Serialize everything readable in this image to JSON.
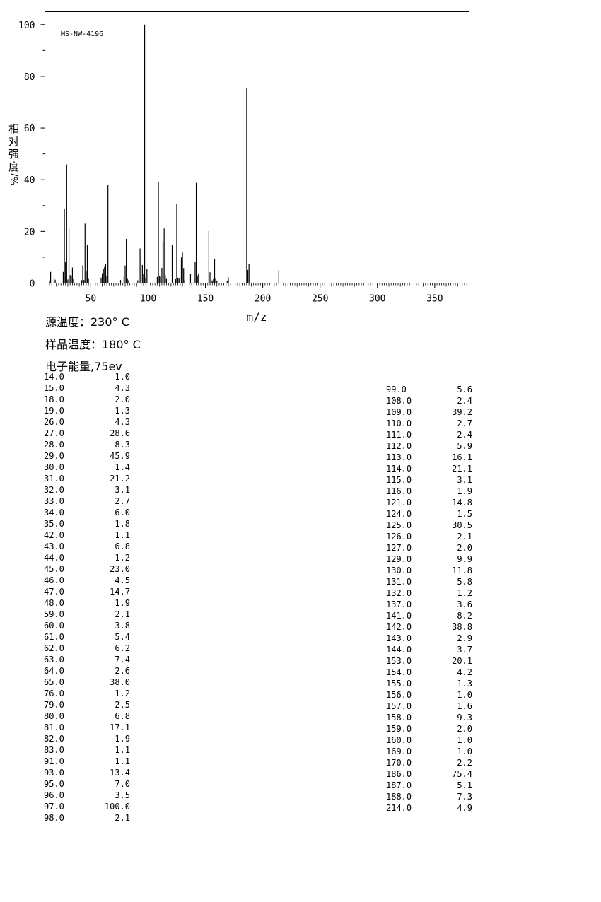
{
  "chart_data": {
    "type": "bar",
    "annotation": "MS-NW-4196",
    "ylabel_chars": [
      "相",
      "对",
      "强",
      "度"
    ],
    "ylabel_suffix": "%/",
    "xlabel": "m/z",
    "xlim": [
      10,
      380
    ],
    "ylim": [
      0,
      105
    ],
    "x_ticks": [
      50,
      100,
      150,
      200,
      250,
      300,
      350
    ],
    "y_ticks": [
      0,
      20,
      40,
      60,
      80,
      100
    ],
    "grid": false,
    "peaks": [
      [
        14,
        1.0
      ],
      [
        15,
        4.3
      ],
      [
        18,
        2.0
      ],
      [
        19,
        1.3
      ],
      [
        26,
        4.3
      ],
      [
        27,
        28.6
      ],
      [
        28,
        8.3
      ],
      [
        29,
        45.9
      ],
      [
        30,
        1.4
      ],
      [
        31,
        21.2
      ],
      [
        32,
        3.1
      ],
      [
        33,
        2.7
      ],
      [
        34,
        6.0
      ],
      [
        35,
        1.8
      ],
      [
        42,
        1.1
      ],
      [
        43,
        6.8
      ],
      [
        44,
        1.2
      ],
      [
        45,
        23.0
      ],
      [
        46,
        4.5
      ],
      [
        47,
        14.7
      ],
      [
        48,
        1.9
      ],
      [
        59,
        2.1
      ],
      [
        60,
        3.8
      ],
      [
        61,
        5.4
      ],
      [
        62,
        6.2
      ],
      [
        63,
        7.4
      ],
      [
        64,
        2.6
      ],
      [
        65,
        38.0
      ],
      [
        76,
        1.2
      ],
      [
        79,
        2.5
      ],
      [
        80,
        6.8
      ],
      [
        81,
        17.1
      ],
      [
        82,
        1.9
      ],
      [
        83,
        1.1
      ],
      [
        91,
        1.1
      ],
      [
        93,
        13.4
      ],
      [
        95,
        7.0
      ],
      [
        96,
        3.5
      ],
      [
        97,
        100.0
      ],
      [
        98,
        2.1
      ],
      [
        99,
        5.6
      ],
      [
        108,
        2.4
      ],
      [
        109,
        39.2
      ],
      [
        110,
        2.7
      ],
      [
        111,
        2.4
      ],
      [
        112,
        5.9
      ],
      [
        113,
        16.1
      ],
      [
        114,
        21.1
      ],
      [
        115,
        3.1
      ],
      [
        116,
        1.9
      ],
      [
        121,
        14.8
      ],
      [
        124,
        1.5
      ],
      [
        125,
        30.5
      ],
      [
        126,
        2.1
      ],
      [
        127,
        2.0
      ],
      [
        129,
        9.9
      ],
      [
        130,
        11.8
      ],
      [
        131,
        5.8
      ],
      [
        132,
        1.2
      ],
      [
        137,
        3.6
      ],
      [
        141,
        8.2
      ],
      [
        142,
        38.8
      ],
      [
        143,
        2.9
      ],
      [
        144,
        3.7
      ],
      [
        153,
        20.1
      ],
      [
        154,
        4.2
      ],
      [
        155,
        1.3
      ],
      [
        156,
        1.0
      ],
      [
        157,
        1.6
      ],
      [
        158,
        9.3
      ],
      [
        159,
        2.0
      ],
      [
        160,
        1.0
      ],
      [
        169,
        1.0
      ],
      [
        170,
        2.2
      ],
      [
        186,
        75.4
      ],
      [
        187,
        5.1
      ],
      [
        188,
        7.3
      ],
      [
        214,
        4.9
      ]
    ]
  },
  "info": {
    "source_temp": "源温度：230° C",
    "sample_temp": "样品温度：180° C",
    "electron_energy": "电子能量,75ev"
  },
  "peak_table_left": [
    [
      "14.0",
      "1.0"
    ],
    [
      "15.0",
      "4.3"
    ],
    [
      "18.0",
      "2.0"
    ],
    [
      "19.0",
      "1.3"
    ],
    [
      "26.0",
      "4.3"
    ],
    [
      "27.0",
      "28.6"
    ],
    [
      "28.0",
      "8.3"
    ],
    [
      "29.0",
      "45.9"
    ],
    [
      "30.0",
      "1.4"
    ],
    [
      "31.0",
      "21.2"
    ],
    [
      "32.0",
      "3.1"
    ],
    [
      "33.0",
      "2.7"
    ],
    [
      "34.0",
      "6.0"
    ],
    [
      "35.0",
      "1.8"
    ],
    [
      "42.0",
      "1.1"
    ],
    [
      "43.0",
      "6.8"
    ],
    [
      "44.0",
      "1.2"
    ],
    [
      "45.0",
      "23.0"
    ],
    [
      "46.0",
      "4.5"
    ],
    [
      "47.0",
      "14.7"
    ],
    [
      "48.0",
      "1.9"
    ],
    [
      "59.0",
      "2.1"
    ],
    [
      "60.0",
      "3.8"
    ],
    [
      "61.0",
      "5.4"
    ],
    [
      "62.0",
      "6.2"
    ],
    [
      "63.0",
      "7.4"
    ],
    [
      "64.0",
      "2.6"
    ],
    [
      "65.0",
      "38.0"
    ],
    [
      "76.0",
      "1.2"
    ],
    [
      "79.0",
      "2.5"
    ],
    [
      "80.0",
      "6.8"
    ],
    [
      "81.0",
      "17.1"
    ],
    [
      "82.0",
      "1.9"
    ],
    [
      "83.0",
      "1.1"
    ],
    [
      "91.0",
      "1.1"
    ],
    [
      "93.0",
      "13.4"
    ],
    [
      "95.0",
      "7.0"
    ],
    [
      "96.0",
      "3.5"
    ],
    [
      "97.0",
      "100.0"
    ],
    [
      "98.0",
      "2.1"
    ]
  ],
  "peak_table_right": [
    [
      "99.0",
      "5.6"
    ],
    [
      "108.0",
      "2.4"
    ],
    [
      "109.0",
      "39.2"
    ],
    [
      "110.0",
      "2.7"
    ],
    [
      "111.0",
      "2.4"
    ],
    [
      "112.0",
      "5.9"
    ],
    [
      "113.0",
      "16.1"
    ],
    [
      "114.0",
      "21.1"
    ],
    [
      "115.0",
      "3.1"
    ],
    [
      "116.0",
      "1.9"
    ],
    [
      "121.0",
      "14.8"
    ],
    [
      "124.0",
      "1.5"
    ],
    [
      "125.0",
      "30.5"
    ],
    [
      "126.0",
      "2.1"
    ],
    [
      "127.0",
      "2.0"
    ],
    [
      "129.0",
      "9.9"
    ],
    [
      "130.0",
      "11.8"
    ],
    [
      "131.0",
      "5.8"
    ],
    [
      "132.0",
      "1.2"
    ],
    [
      "137.0",
      "3.6"
    ],
    [
      "141.0",
      "8.2"
    ],
    [
      "142.0",
      "38.8"
    ],
    [
      "143.0",
      "2.9"
    ],
    [
      "144.0",
      "3.7"
    ],
    [
      "153.0",
      "20.1"
    ],
    [
      "154.0",
      "4.2"
    ],
    [
      "155.0",
      "1.3"
    ],
    [
      "156.0",
      "1.0"
    ],
    [
      "157.0",
      "1.6"
    ],
    [
      "158.0",
      "9.3"
    ],
    [
      "159.0",
      "2.0"
    ],
    [
      "160.0",
      "1.0"
    ],
    [
      "169.0",
      "1.0"
    ],
    [
      "170.0",
      "2.2"
    ],
    [
      "186.0",
      "75.4"
    ],
    [
      "187.0",
      "5.1"
    ],
    [
      "188.0",
      "7.3"
    ],
    [
      "214.0",
      "4.9"
    ]
  ]
}
